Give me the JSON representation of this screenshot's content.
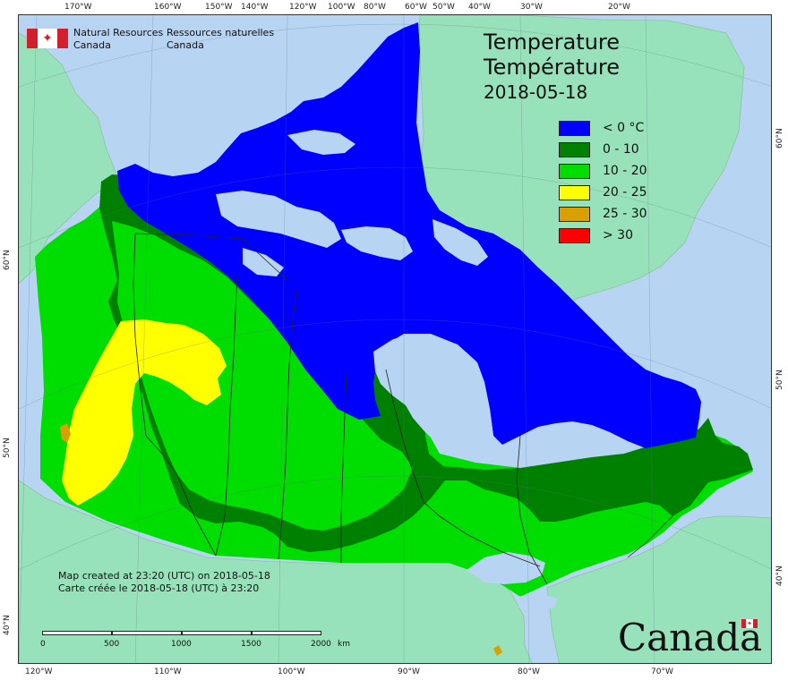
{
  "header": {
    "title_en": "Temperature",
    "title_fr": "Température",
    "date": "2018-05-18"
  },
  "organization": {
    "name_en_line1": "Natural Resources",
    "name_en_line2": "Canada",
    "name_fr_line1": "Ressources naturelles",
    "name_fr_line2": "Canada",
    "logo_icon": "canada-flag-icon"
  },
  "legend": [
    {
      "label": "< 0 °C",
      "color": "#0000ff"
    },
    {
      "label": "0 - 10",
      "color": "#008000"
    },
    {
      "label": "10 - 20",
      "color": "#00dd00"
    },
    {
      "label": "20 - 25",
      "color": "#ffff00"
    },
    {
      "label": "25 - 30",
      "color": "#d8a000"
    },
    {
      "label": "> 30",
      "color": "#ff0000"
    }
  ],
  "credit": {
    "line1": "Map created at 23:20 (UTC) on 2018-05-18",
    "line2": "Carte créée le 2018-05-18 (UTC) à 23:20"
  },
  "scale": {
    "ticks": [
      "0",
      "500",
      "1000",
      "1500",
      "2000"
    ],
    "unit": "km"
  },
  "graticule": {
    "top": [
      "170°W",
      "160°W",
      "150°W",
      "140°W",
      "120°W",
      "100°W",
      "80°W",
      "60°W",
      "50°W",
      "40°W",
      "30°W",
      "20°W"
    ],
    "bottom": [
      "120°W",
      "110°W",
      "100°W",
      "90°W",
      "80°W",
      "70°W"
    ],
    "left": [
      "60°N",
      "50°N",
      "40°N"
    ],
    "right": [
      "60°N",
      "50°N",
      "40°N"
    ]
  },
  "wordmark": {
    "text": "Canada",
    "flag_icon": "canada-flag-icon"
  },
  "colors": {
    "water": "#b7d5f3",
    "land_outside": "#98e2bb",
    "border_line": "#222222"
  }
}
